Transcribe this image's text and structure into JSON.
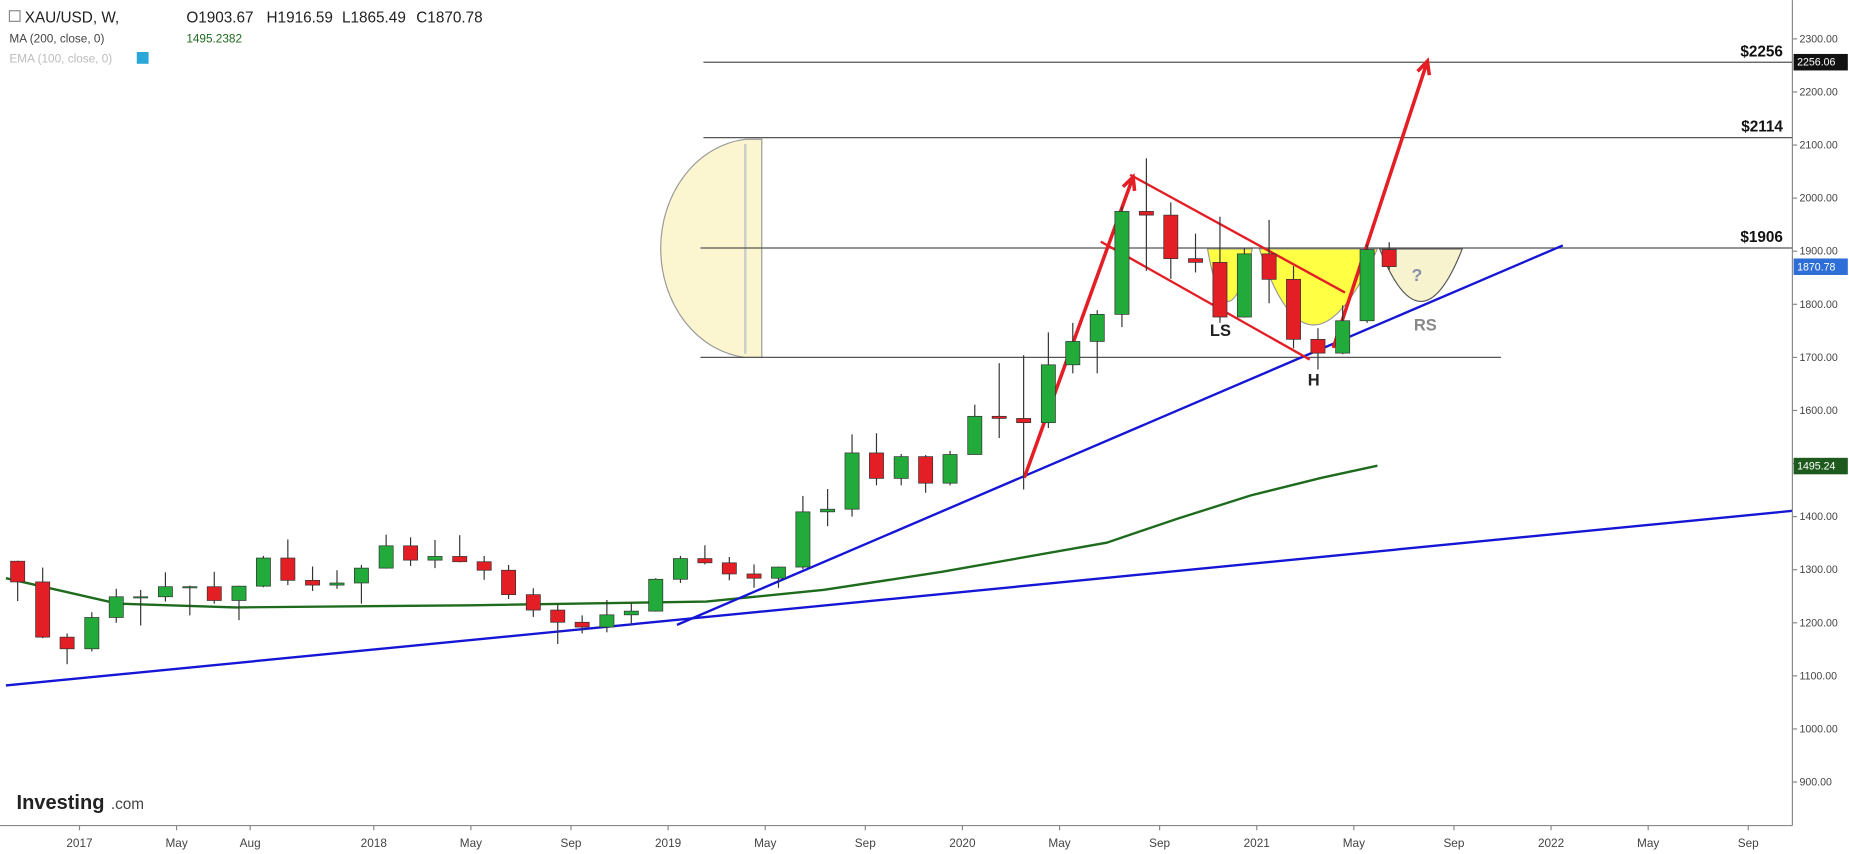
{
  "chart_data": {
    "type": "candlestick",
    "title": "XAU/USD, W,",
    "ohlc_labels": [
      "O1903.67",
      "H1916.59",
      "L1865.49",
      "C1870.78"
    ],
    "indicators": [
      {
        "name": "MA (200, close, 0)",
        "value_label": 1495.2382,
        "color": "#1e6b1e"
      },
      {
        "name": "EMA (100, close, 0)",
        "color": "#bbbbbb"
      }
    ],
    "color_up": "#22ab3a",
    "color_down": "#e31e24",
    "x": [
      2016.79,
      2016.875,
      2016.958,
      2017.042,
      2017.125,
      2017.208,
      2017.292,
      2017.375,
      2017.458,
      2017.542,
      2017.625,
      2017.708,
      2017.792,
      2017.875,
      2017.958,
      2018.042,
      2018.125,
      2018.208,
      2018.292,
      2018.375,
      2018.458,
      2018.542,
      2018.625,
      2018.708,
      2018.792,
      2018.875,
      2018.958,
      2019.042,
      2019.125,
      2019.208,
      2019.292,
      2019.375,
      2019.458,
      2019.542,
      2019.625,
      2019.708,
      2019.792,
      2019.875,
      2019.958,
      2020.042,
      2020.125,
      2020.208,
      2020.292,
      2020.375,
      2020.458,
      2020.542,
      2020.625,
      2020.708,
      2020.792,
      2020.875,
      2020.958,
      2021.042,
      2021.125,
      2021.208,
      2021.292,
      2021.375,
      2021.45
    ],
    "open": [
      1316,
      1277,
      1173,
      1151,
      1210,
      1249,
      1249,
      1268,
      1268,
      1242,
      1269,
      1322,
      1280,
      1271,
      1275,
      1303,
      1345,
      1318,
      1325,
      1315,
      1299,
      1253,
      1224,
      1201,
      1192,
      1215,
      1222,
      1282,
      1321,
      1313,
      1292,
      1284,
      1305,
      1409,
      1414,
      1520,
      1472,
      1513,
      1463,
      1517,
      1589,
      1585,
      1577,
      1686,
      1730,
      1781,
      1975,
      1968,
      1886,
      1879,
      1776,
      1895,
      1847,
      1734,
      1708,
      1769,
      1903
    ],
    "high": [
      1317,
      1304,
      1180,
      1220,
      1264,
      1262,
      1295,
      1270,
      1296,
      1270,
      1326,
      1357,
      1306,
      1299,
      1309,
      1366,
      1361,
      1356,
      1365,
      1326,
      1309,
      1265,
      1235,
      1214,
      1243,
      1237,
      1284,
      1326,
      1346,
      1324,
      1310,
      1306,
      1439,
      1452,
      1555,
      1557,
      1518,
      1516,
      1524,
      1611,
      1689,
      1704,
      1747,
      1765,
      1789,
      1984,
      2075,
      1992,
      1933,
      1965,
      1906,
      1959,
      1872,
      1755,
      1798,
      1913,
      1917
    ],
    "low": [
      1241,
      1171,
      1122,
      1146,
      1200,
      1195,
      1240,
      1214,
      1236,
      1205,
      1267,
      1271,
      1260,
      1264,
      1236,
      1302,
      1307,
      1303,
      1314,
      1281,
      1245,
      1211,
      1160,
      1180,
      1182,
      1196,
      1221,
      1275,
      1310,
      1280,
      1266,
      1266,
      1301,
      1382,
      1400,
      1459,
      1459,
      1445,
      1459,
      1517,
      1548,
      1451,
      1567,
      1670,
      1670,
      1757,
      1863,
      1848,
      1860,
      1765,
      1775,
      1802,
      1717,
      1677,
      1706,
      1765,
      1865
    ],
    "close": [
      1277,
      1173,
      1151,
      1210,
      1249,
      1249,
      1268,
      1268,
      1242,
      1269,
      1322,
      1280,
      1271,
      1275,
      1303,
      1345,
      1318,
      1325,
      1315,
      1299,
      1253,
      1224,
      1201,
      1192,
      1215,
      1222,
      1282,
      1321,
      1313,
      1292,
      1284,
      1305,
      1409,
      1414,
      1520,
      1472,
      1513,
      1463,
      1517,
      1589,
      1585,
      1577,
      1686,
      1730,
      1781,
      1975,
      1968,
      1886,
      1879,
      1776,
      1895,
      1847,
      1734,
      1708,
      1769,
      1903,
      1871
    ],
    "ma": {
      "color": "#1e6b1e",
      "x": [
        2016.75,
        2017.13,
        2017.53,
        2018.33,
        2019.13,
        2019.53,
        2019.93,
        2020.49,
        2020.73,
        2020.98,
        2021.22,
        2021.41
      ],
      "values": [
        1284,
        1236,
        1229,
        1233,
        1240,
        1262,
        1296,
        1351,
        1396,
        1440,
        1473,
        1496
      ]
    },
    "trendlines": [
      {
        "color": "#1515d6",
        "x": [
          2016.75,
          2022.82
        ],
        "values": [
          1082,
          1411
        ]
      },
      {
        "color": "#1515d6",
        "x": [
          2019.03,
          2022.04
        ],
        "values": [
          1196,
          1911
        ]
      },
      {
        "color": "#e31e24",
        "x": [
          2020.57,
          2021.3
        ],
        "values": [
          2044,
          1822
        ]
      },
      {
        "color": "#e31e24",
        "x": [
          2020.47,
          2021.18
        ],
        "values": [
          1918,
          1696
        ]
      }
    ],
    "arrows": [
      {
        "color": "#e31e24",
        "x": [
          2020.21,
          2020.58
        ],
        "values": [
          1473,
          2040
        ]
      },
      {
        "color": "#e31e24",
        "x": [
          2021.26,
          2021.58
        ],
        "values": [
          1718,
          2258
        ]
      }
    ],
    "levels": [
      {
        "value": 2256,
        "label": "$2256",
        "x": [
          2019.12,
          2022.82
        ]
      },
      {
        "value": 2114,
        "label": "$2114",
        "x": [
          2019.12,
          2022.82
        ]
      },
      {
        "value": 1906,
        "label": "$1906",
        "x": [
          2019.11,
          2022.82
        ]
      },
      {
        "value": 1700,
        "x": [
          2019.11,
          2021.83
        ]
      }
    ],
    "price_tags": [
      {
        "value": 2256.06,
        "color": "#111111"
      },
      {
        "value": 1870.78,
        "color": "#2d6fd6"
      },
      {
        "value": 1495.24,
        "color": "#1e5a1e"
      }
    ],
    "annotations": [
      "LS",
      "H",
      "RS",
      "?"
    ],
    "logo": [
      "Investing",
      ".com"
    ],
    "xlim": [
      2016.73,
      2022.82
    ],
    "ylim": [
      818,
      2373
    ],
    "xticks": [
      {
        "value": 2017,
        "label": "2017"
      },
      {
        "value": 2017.33,
        "label": "May"
      },
      {
        "value": 2017.58,
        "label": "Aug"
      },
      {
        "value": 2018,
        "label": "2018"
      },
      {
        "value": 2018.33,
        "label": "May"
      },
      {
        "value": 2018.67,
        "label": "Sep"
      },
      {
        "value": 2019,
        "label": "2019"
      },
      {
        "value": 2019.33,
        "label": "May"
      },
      {
        "value": 2019.67,
        "label": "Sep"
      },
      {
        "value": 2020,
        "label": "2020"
      },
      {
        "value": 2020.33,
        "label": "May"
      },
      {
        "value": 2020.67,
        "label": "Sep"
      },
      {
        "value": 2021,
        "label": "2021"
      },
      {
        "value": 2021.33,
        "label": "May"
      },
      {
        "value": 2021.67,
        "label": "Sep"
      },
      {
        "value": 2022,
        "label": "2022"
      },
      {
        "value": 2022.33,
        "label": "May"
      },
      {
        "value": 2022.67,
        "label": "Sep"
      }
    ],
    "yticks": [
      {
        "value": 900,
        "label": "900.00"
      },
      {
        "value": 1000,
        "label": "1000.00"
      },
      {
        "value": 1100,
        "label": "1100.00"
      },
      {
        "value": 1200,
        "label": "1200.00"
      },
      {
        "value": 1300,
        "label": "1300.00"
      },
      {
        "value": 1400,
        "label": "1400.00"
      },
      {
        "value": 1500,
        "label": "1500.00"
      },
      {
        "value": 1600,
        "label": "1600.00"
      },
      {
        "value": 1700,
        "label": "1700.00"
      },
      {
        "value": 1800,
        "label": "1800.00"
      },
      {
        "value": 1900,
        "label": "1900.00"
      },
      {
        "value": 2000,
        "label": "2000.00"
      },
      {
        "value": 2100,
        "label": "2100.00"
      },
      {
        "value": 2200,
        "label": "2200.00"
      },
      {
        "value": 2300,
        "label": "2300.00"
      }
    ]
  }
}
